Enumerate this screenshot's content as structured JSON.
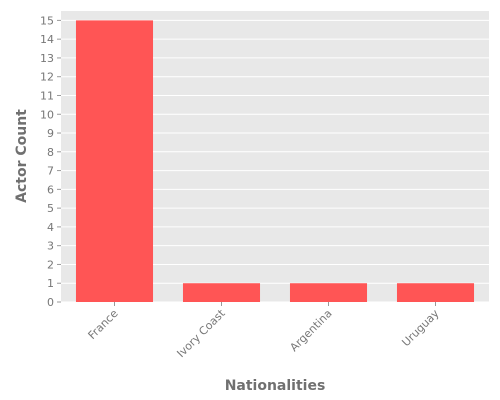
{
  "chart_data": {
    "type": "bar",
    "categories": [
      "France",
      "Ivory Coast",
      "Argentina",
      "Uruguay"
    ],
    "values": [
      15,
      1,
      1,
      1
    ],
    "title": "",
    "xlabel": "Nationalities",
    "ylabel": "Actor Count",
    "ylim": [
      0,
      15.5
    ],
    "yticks": [
      0,
      1,
      2,
      3,
      4,
      5,
      6,
      7,
      8,
      9,
      10,
      11,
      12,
      13,
      14,
      15
    ],
    "grid": true,
    "legend": "none",
    "colors": {
      "bar": "#ff5555",
      "plot_background": "#e8e8e8",
      "grid": "#ffffff",
      "tick_text": "#777777",
      "axis_title": "#707070"
    }
  }
}
